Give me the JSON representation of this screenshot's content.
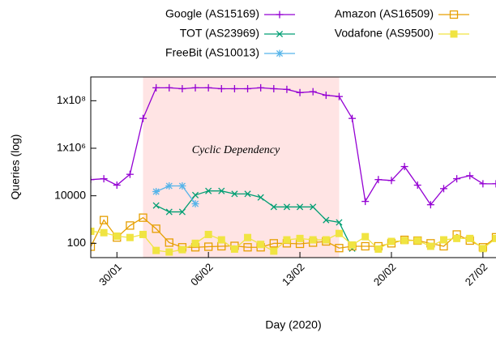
{
  "chart_data": {
    "type": "line",
    "annotation": "Cyclic Dependency",
    "shade": {
      "from": "2020-02-01",
      "to": "2020-02-16",
      "color": "#ffe4e4"
    },
    "x_label": "Day (2020)",
    "y_label": "Queries (log)",
    "log_y": true,
    "legend": "top",
    "x": [
      "2020-01-28",
      "2020-01-29",
      "2020-01-30",
      "2020-01-31",
      "2020-02-01",
      "2020-02-02",
      "2020-02-03",
      "2020-02-04",
      "2020-02-05",
      "2020-02-06",
      "2020-02-07",
      "2020-02-08",
      "2020-02-09",
      "2020-02-10",
      "2020-02-11",
      "2020-02-12",
      "2020-02-13",
      "2020-02-14",
      "2020-02-15",
      "2020-02-16",
      "2020-02-17",
      "2020-02-18",
      "2020-02-19",
      "2020-02-20",
      "2020-02-21",
      "2020-02-22",
      "2020-02-23",
      "2020-02-24",
      "2020-02-25",
      "2020-02-26",
      "2020-02-27",
      "2020-02-28"
    ],
    "xlim": [
      "2020-01-28",
      "2020-02-28"
    ],
    "xticks": [
      {
        "value": "2020-01-30",
        "label": "30/01"
      },
      {
        "value": "2020-02-06",
        "label": "06/02"
      },
      {
        "value": "2020-02-13",
        "label": "13/02"
      },
      {
        "value": "2020-02-20",
        "label": "20/02"
      },
      {
        "value": "2020-02-27",
        "label": "27/02"
      }
    ],
    "ylim": [
      25,
      1000000000
    ],
    "yticks": [
      100,
      10000,
      {
        "value": 1000000,
        "label": "1x10⁶"
      },
      {
        "value": 100000000,
        "label": "1x10⁸"
      }
    ],
    "series": [
      {
        "name": "Google (AS15169)",
        "color": "#9400d3",
        "marker": "plus",
        "values": [
          48000,
          52000,
          28000,
          80000,
          18000000,
          350000000,
          350000000,
          320000000,
          350000000,
          350000000,
          320000000,
          320000000,
          320000000,
          350000000,
          320000000,
          300000000,
          220000000,
          240000000,
          170000000,
          150000000,
          18000000,
          5800,
          48000,
          44000,
          170000,
          28000,
          4200,
          20000,
          52000,
          70000,
          32000,
          32000
        ]
      },
      {
        "name": "TOT (AS23969)",
        "color": "#009e73",
        "marker": "cross",
        "values": [
          null,
          null,
          null,
          null,
          null,
          3900,
          2100,
          2100,
          10700,
          16000,
          16000,
          12000,
          12000,
          8500,
          3400,
          3400,
          3400,
          3400,
          950,
          760,
          60,
          null,
          null,
          null,
          null,
          null,
          null,
          null,
          null,
          null,
          null,
          null
        ]
      },
      {
        "name": "FreeBit (AS10013)",
        "color": "#56b4e9",
        "marker": "star",
        "values": [
          null,
          null,
          null,
          null,
          null,
          15000,
          26000,
          26000,
          4600,
          null,
          null,
          null,
          null,
          null,
          null,
          null,
          null,
          null,
          null,
          null,
          null,
          null,
          null,
          null,
          null,
          null,
          null,
          null,
          null,
          null,
          null,
          null
        ]
      },
      {
        "name": "Amazon (AS16509)",
        "color": "#e69f00",
        "marker": "square-open",
        "values": [
          72,
          950,
          175,
          560,
          1200,
          410,
          107,
          68,
          68,
          72,
          75,
          78,
          68,
          68,
          100,
          100,
          95,
          107,
          120,
          63,
          75,
          75,
          75,
          100,
          140,
          130,
          100,
          75,
          235,
          130,
          68,
          180
        ]
      },
      {
        "name": "Vodafone (AS9500)",
        "color": "#f0e442",
        "marker": "square",
        "values": [
          320,
          280,
          200,
          175,
          235,
          50,
          43,
          54,
          100,
          235,
          140,
          57,
          175,
          90,
          47,
          140,
          160,
          140,
          140,
          260,
          85,
          190,
          57,
          120,
          130,
          130,
          75,
          140,
          160,
          160,
          60,
          160
        ]
      }
    ]
  }
}
